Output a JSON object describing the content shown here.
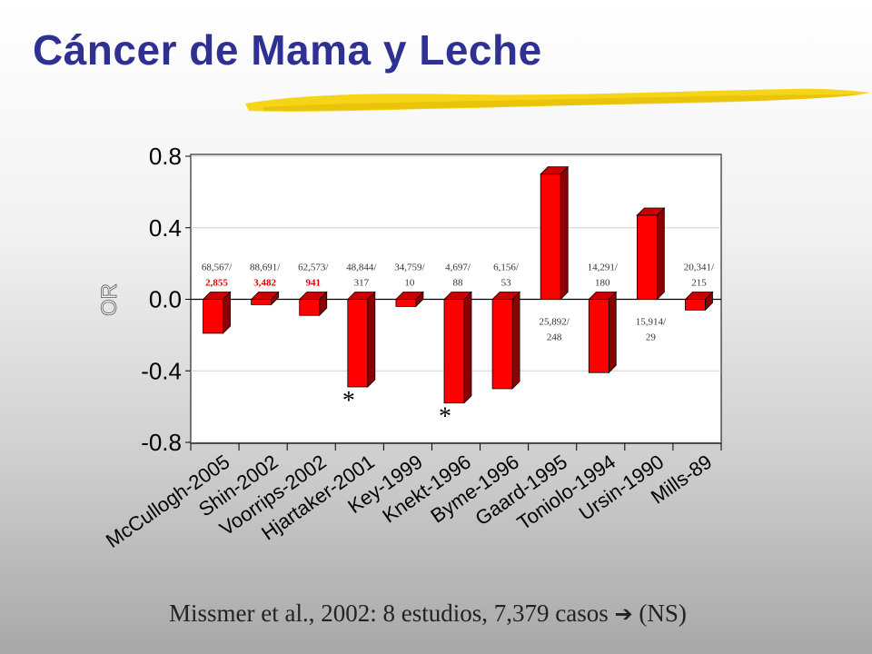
{
  "slide": {
    "title": "Cáncer de Mama y Leche",
    "footnote_main": "Missmer et al., 2002: 8 estudios, 7,379 casos",
    "footnote_arrow": "➔",
    "footnote_end": "(NS)"
  },
  "colors": {
    "title": "#2e3192",
    "bar_front": "#ff0000",
    "bar_side": "#8b0000",
    "bar_top": "#cc0000",
    "highlight_label": "#e00000",
    "accent_brush": "#f5d000"
  },
  "chart_data": {
    "type": "bar",
    "title": "",
    "xlabel": "",
    "ylabel": "OR",
    "ylim": [
      -0.8,
      0.8
    ],
    "yticks": [
      "0.8",
      "0.4",
      "0.0",
      "-0.4",
      "-0.8"
    ],
    "ytick_values": [
      0.8,
      0.4,
      0.0,
      -0.4,
      -0.8
    ],
    "grid": true,
    "categories": [
      "McCullogh-2005",
      "Shin-2002",
      "Voorrips-2002",
      "Hjartaker-2001",
      "Key-1999",
      "Knekt-1996",
      "Byme-1996",
      "Gaard-1995",
      "Toniolo-1994",
      "Ursin-1990",
      "Mills-89"
    ],
    "values": [
      -0.19,
      -0.03,
      -0.09,
      -0.49,
      -0.04,
      -0.58,
      -0.5,
      0.7,
      -0.41,
      0.47,
      -0.06
    ],
    "labels_top": [
      "68,567/",
      "88,691/",
      "62,573/",
      "48,844/",
      "34,759/",
      "4,697/",
      "6,156/",
      "25,892/",
      "14,291/",
      "15,914/",
      "20,341/"
    ],
    "labels_bottom": [
      "2,855",
      "3,482",
      "941",
      "317",
      "10",
      "88",
      "53",
      "248",
      "180",
      "29",
      "215"
    ],
    "label_highlight": [
      true,
      true,
      true,
      false,
      false,
      false,
      false,
      false,
      false,
      false,
      false
    ],
    "label_below_axis": [
      false,
      false,
      false,
      false,
      false,
      false,
      false,
      true,
      false,
      true,
      false
    ],
    "significance": [
      "",
      "",
      "",
      "*",
      "",
      "*",
      "",
      "",
      "",
      "",
      ""
    ]
  }
}
